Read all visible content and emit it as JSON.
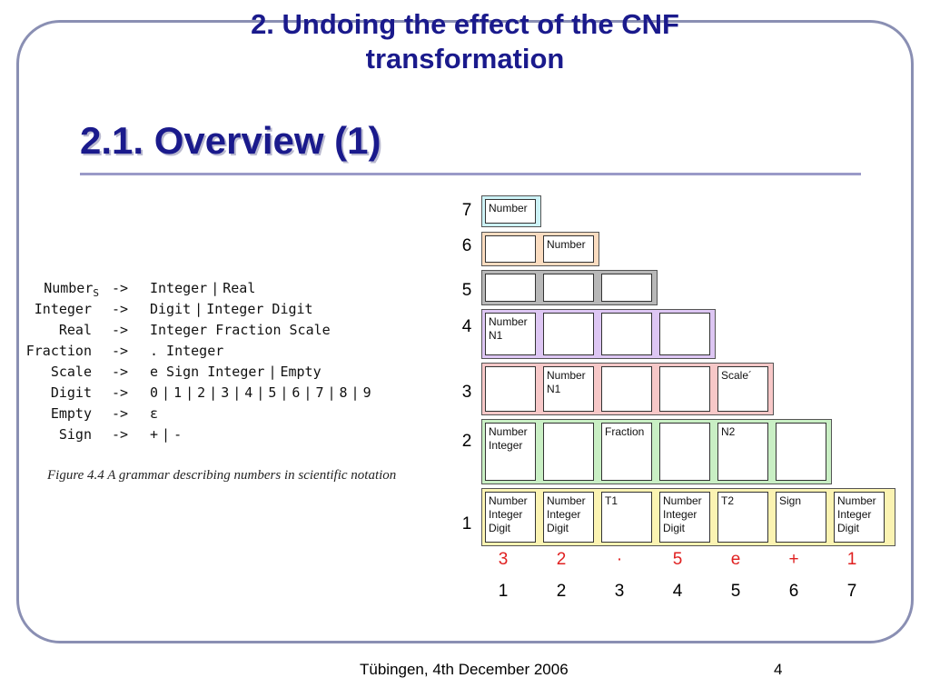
{
  "slide": {
    "title_line1": "2. Undoing the effect of the CNF",
    "title_line2": "transformation",
    "subtitle": "2.1. Overview (1)",
    "footer": "Tübingen, 4th December 2006",
    "page_number": "4"
  },
  "grammar": {
    "rules": [
      {
        "lhs": "Number",
        "lhs_sub": "S",
        "arrow": "->",
        "rhs": [
          "Integer",
          "Real"
        ]
      },
      {
        "lhs": "Integer",
        "arrow": "->",
        "rhs": [
          "Digit",
          "Integer Digit"
        ]
      },
      {
        "lhs": "Real",
        "arrow": "->",
        "rhs": [
          "Integer Fraction Scale"
        ]
      },
      {
        "lhs": "Fraction",
        "arrow": "->",
        "rhs": [
          ". Integer"
        ]
      },
      {
        "lhs": "Scale",
        "arrow": "->",
        "rhs": [
          "e Sign Integer",
          "Empty"
        ]
      },
      {
        "lhs": "Digit",
        "arrow": "->",
        "rhs": [
          "0",
          "1",
          "2",
          "3",
          "4",
          "5",
          "6",
          "7",
          "8",
          "9"
        ]
      },
      {
        "lhs": "Empty",
        "arrow": "->",
        "rhs": [
          "ε"
        ]
      },
      {
        "lhs": "Sign",
        "arrow": "->",
        "rhs": [
          "+",
          "-"
        ]
      }
    ],
    "caption": "Figure 4.4  A grammar describing numbers in scientific notation"
  },
  "table": {
    "rows": [
      {
        "label": "7",
        "color": "#ccf2f6",
        "cells": [
          [
            "Number"
          ]
        ]
      },
      {
        "label": "6",
        "color": "#fbdcc0",
        "cells": [
          [],
          [
            "Number"
          ]
        ]
      },
      {
        "label": "5",
        "color": "#b8b8b8",
        "cells": [
          [],
          [],
          []
        ]
      },
      {
        "label": "4",
        "color": "#ddc6f3",
        "cells": [
          [
            "Number",
            "N1"
          ],
          [],
          [],
          []
        ]
      },
      {
        "label": "3",
        "color": "#f7c8c8",
        "cells": [
          [],
          [
            "Number",
            "N1"
          ],
          [],
          [],
          [
            "Scale´"
          ]
        ]
      },
      {
        "label": "2",
        "color": "#c9efc4",
        "cells": [
          [
            "Number",
            "Integer"
          ],
          [],
          [
            "Fraction"
          ],
          [],
          [
            "N2"
          ],
          []
        ]
      },
      {
        "label": "1",
        "color": "#fbf3b2",
        "cells": [
          [
            "Number",
            "Integer",
            "Digit"
          ],
          [
            "Number",
            "Integer",
            "Digit"
          ],
          [
            "T1"
          ],
          [
            "Number",
            "Integer",
            "Digit"
          ],
          [
            "T2"
          ],
          [
            "Sign"
          ],
          [
            "Number",
            "Integer",
            "Digit"
          ]
        ]
      }
    ],
    "tokens": [
      "3",
      "2",
      "·",
      "5",
      "e",
      "+",
      "1"
    ],
    "positions": [
      "1",
      "2",
      "3",
      "4",
      "5",
      "6",
      "7"
    ]
  }
}
